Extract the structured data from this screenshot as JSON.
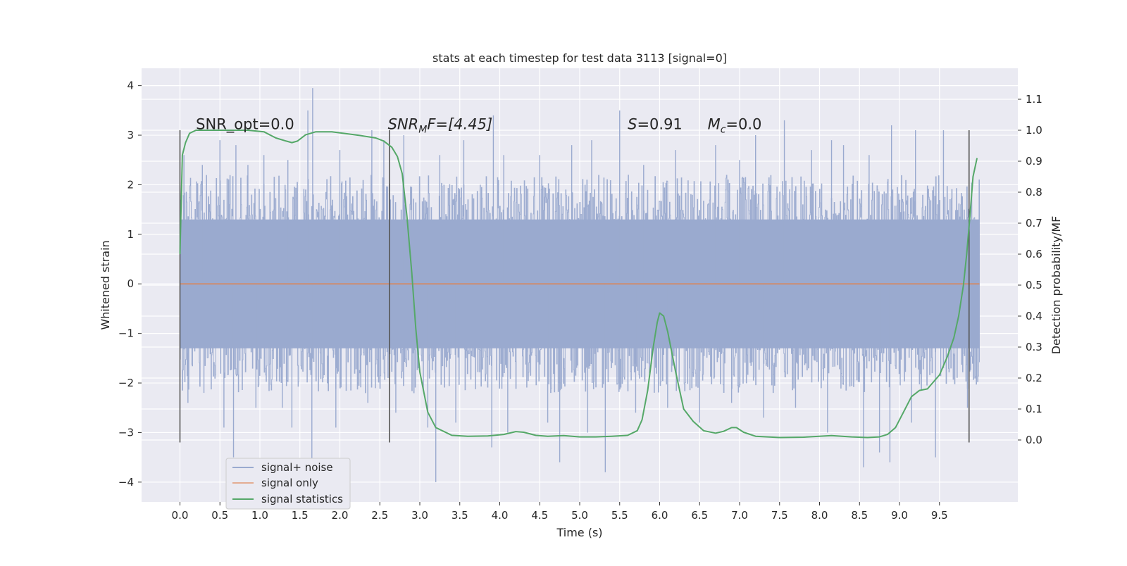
{
  "chart_data": {
    "type": "line",
    "title": "stats at each timestep for test data 3113 [signal=0]",
    "xlabel": "Time (s)",
    "ylabel": "Whitened strain",
    "y2label": "Detection probability/MF",
    "xlim": [
      -0.48,
      10.48
    ],
    "ylim": [
      -4.4,
      4.35
    ],
    "y2lim": [
      -0.2,
      1.2
    ],
    "x_ticks": [
      "0.0",
      "0.5",
      "1.0",
      "1.5",
      "2.0",
      "2.5",
      "3.0",
      "3.5",
      "4.0",
      "4.5",
      "5.0",
      "5.5",
      "6.0",
      "6.5",
      "7.0",
      "7.5",
      "8.0",
      "8.5",
      "9.0",
      "9.5"
    ],
    "y_ticks": [
      "4",
      "3",
      "2",
      "1",
      "0",
      "−1",
      "−2",
      "−3",
      "−4"
    ],
    "y2_ticks": [
      "1.1",
      "1.0",
      "0.9",
      "0.8",
      "0.7",
      "0.6",
      "0.5",
      "0.4",
      "0.3",
      "0.2",
      "0.1",
      "0.0"
    ],
    "grid": true,
    "legend_position": "lower-left",
    "background": "#eaeaf2",
    "series": [
      {
        "name": "signal+ noise",
        "color": "#9aaacf",
        "kind": "noise",
        "x_range": [
          0.0,
          10.0
        ],
        "typical_band": [
          -1.3,
          1.3
        ],
        "peaks_high": [
          [
            0.05,
            2.6
          ],
          [
            0.28,
            2.4
          ],
          [
            0.5,
            2.2
          ],
          [
            0.5,
            2.9
          ],
          [
            0.7,
            2.8
          ],
          [
            0.85,
            2.4
          ],
          [
            1.05,
            2.6
          ],
          [
            1.35,
            2.5
          ],
          [
            1.6,
            3.5
          ],
          [
            1.66,
            3.95
          ],
          [
            2.0,
            2.7
          ],
          [
            2.4,
            3.1
          ],
          [
            2.55,
            2.9
          ],
          [
            2.8,
            3.0
          ],
          [
            3.25,
            2.6
          ],
          [
            3.55,
            2.9
          ],
          [
            3.92,
            3.4
          ],
          [
            4.05,
            2.6
          ],
          [
            4.5,
            2.6
          ],
          [
            4.9,
            2.8
          ],
          [
            5.15,
            2.9
          ],
          [
            5.5,
            3.5
          ],
          [
            5.8,
            2.4
          ],
          [
            6.2,
            2.7
          ],
          [
            6.7,
            2.8
          ],
          [
            7.0,
            2.5
          ],
          [
            7.2,
            3.0
          ],
          [
            7.56,
            3.3
          ],
          [
            7.9,
            2.7
          ],
          [
            8.15,
            2.9
          ],
          [
            8.3,
            2.8
          ],
          [
            8.62,
            2.6
          ],
          [
            8.9,
            3.2
          ],
          [
            9.2,
            3.1
          ],
          [
            9.55,
            3.1
          ]
        ],
        "peaks_low": [
          [
            0.1,
            -2.4
          ],
          [
            0.3,
            -2.2
          ],
          [
            0.55,
            -2.9
          ],
          [
            0.67,
            -3.5
          ],
          [
            0.95,
            -2.5
          ],
          [
            1.28,
            -2.5
          ],
          [
            1.4,
            -2.9
          ],
          [
            1.65,
            -3.6
          ],
          [
            1.95,
            -2.9
          ],
          [
            2.35,
            -2.4
          ],
          [
            2.7,
            -2.6
          ],
          [
            3.1,
            -2.9
          ],
          [
            3.2,
            -4.0
          ],
          [
            3.45,
            -2.8
          ],
          [
            3.9,
            -3.3
          ],
          [
            4.1,
            -3.0
          ],
          [
            4.6,
            -2.8
          ],
          [
            4.75,
            -3.6
          ],
          [
            5.1,
            -3.0
          ],
          [
            5.32,
            -3.8
          ],
          [
            5.7,
            -2.6
          ],
          [
            6.1,
            -2.5
          ],
          [
            6.5,
            -2.8
          ],
          [
            6.9,
            -2.4
          ],
          [
            7.3,
            -2.7
          ],
          [
            7.7,
            -2.5
          ],
          [
            8.1,
            -3.0
          ],
          [
            8.55,
            -3.7
          ],
          [
            8.75,
            -3.4
          ],
          [
            8.88,
            -3.6
          ],
          [
            9.15,
            -2.8
          ],
          [
            9.45,
            -3.5
          ],
          [
            9.85,
            -2.5
          ]
        ]
      },
      {
        "name": "signal only",
        "color": "#dd8452",
        "kind": "line",
        "x": [
          0.0,
          10.0
        ],
        "y": [
          0.0,
          0.0
        ]
      },
      {
        "name": "signal statistics",
        "color": "#55a868",
        "kind": "line",
        "axis": "right",
        "x": [
          0.0,
          0.03,
          0.07,
          0.12,
          0.2,
          0.35,
          0.6,
          0.85,
          1.05,
          1.2,
          1.33,
          1.4,
          1.47,
          1.57,
          1.7,
          1.9,
          2.2,
          2.45,
          2.55,
          2.65,
          2.72,
          2.78,
          2.84,
          2.9,
          2.95,
          3.0,
          3.1,
          3.2,
          3.4,
          3.6,
          3.85,
          4.05,
          4.2,
          4.3,
          4.45,
          4.6,
          4.8,
          5.0,
          5.2,
          5.4,
          5.6,
          5.72,
          5.78,
          5.85,
          5.92,
          5.97,
          6.0,
          6.05,
          6.1,
          6.2,
          6.3,
          6.42,
          6.55,
          6.7,
          6.8,
          6.9,
          6.96,
          7.05,
          7.2,
          7.5,
          7.8,
          8.15,
          8.4,
          8.6,
          8.75,
          8.85,
          8.95,
          9.05,
          9.15,
          9.25,
          9.35,
          9.5,
          9.6,
          9.68,
          9.74,
          9.8,
          9.84,
          9.88,
          9.92,
          9.97
        ],
        "y": [
          0.6,
          0.92,
          0.96,
          0.99,
          1.0,
          1.0,
          1.0,
          1.0,
          0.995,
          0.975,
          0.965,
          0.96,
          0.965,
          0.985,
          0.995,
          0.995,
          0.985,
          0.975,
          0.965,
          0.945,
          0.915,
          0.86,
          0.72,
          0.54,
          0.36,
          0.22,
          0.09,
          0.04,
          0.015,
          0.012,
          0.013,
          0.018,
          0.027,
          0.025,
          0.015,
          0.012,
          0.014,
          0.01,
          0.01,
          0.012,
          0.015,
          0.03,
          0.065,
          0.16,
          0.3,
          0.38,
          0.41,
          0.4,
          0.35,
          0.22,
          0.1,
          0.06,
          0.03,
          0.022,
          0.028,
          0.04,
          0.04,
          0.025,
          0.012,
          0.008,
          0.009,
          0.014,
          0.01,
          0.008,
          0.01,
          0.018,
          0.04,
          0.09,
          0.14,
          0.16,
          0.165,
          0.21,
          0.27,
          0.33,
          0.4,
          0.5,
          0.6,
          0.72,
          0.85,
          0.91
        ]
      }
    ],
    "vlines": [
      0.0,
      2.62,
      9.87
    ],
    "vline_range": [
      -3.2,
      3.1
    ],
    "annotations": [
      {
        "name": "snr-opt",
        "x": 0.2,
        "y": 3.12,
        "text": "SNR_opt=0.0"
      },
      {
        "name": "snr-mf",
        "x": 2.6,
        "y": 3.12,
        "main": "SNR",
        "sub": "M",
        "tail": "F=[4.45]"
      },
      {
        "name": "s-value",
        "x": 5.6,
        "y": 3.12,
        "main": "S",
        "tail": "=0.91"
      },
      {
        "name": "mc-value",
        "x": 6.6,
        "y": 3.12,
        "main": "M",
        "sub": "c",
        "tail": "=0.0"
      }
    ]
  }
}
